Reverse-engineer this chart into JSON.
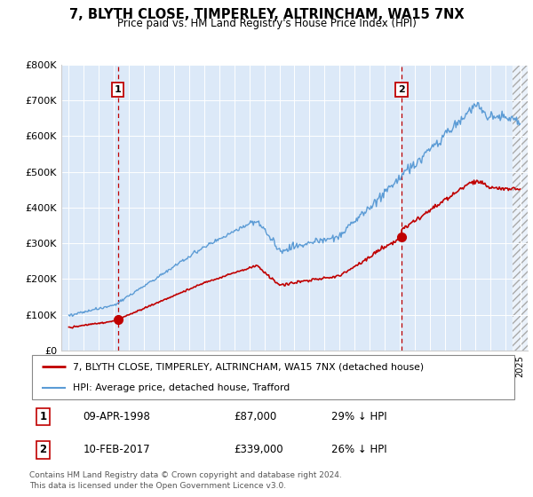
{
  "title": "7, BLYTH CLOSE, TIMPERLEY, ALTRINCHAM, WA15 7NX",
  "subtitle": "Price paid vs. HM Land Registry's House Price Index (HPI)",
  "ylim": [
    0,
    800000
  ],
  "yticks": [
    0,
    100000,
    200000,
    300000,
    400000,
    500000,
    600000,
    700000,
    800000
  ],
  "ytick_labels": [
    "£0",
    "£100K",
    "£200K",
    "£300K",
    "£400K",
    "£500K",
    "£600K",
    "£700K",
    "£800K"
  ],
  "plot_bg_color": "#dce9f8",
  "hpi_color": "#5b9bd5",
  "price_color": "#c00000",
  "vline_color": "#c00000",
  "t1": 1998.27,
  "p1": 87000,
  "t2": 2017.11,
  "p2": 339000,
  "legend_line1": "7, BLYTH CLOSE, TIMPERLEY, ALTRINCHAM, WA15 7NX (detached house)",
  "legend_line2": "HPI: Average price, detached house, Trafford",
  "footnote1": "Contains HM Land Registry data © Crown copyright and database right 2024.",
  "footnote2": "This data is licensed under the Open Government Licence v3.0.",
  "table_row1": [
    "1",
    "09-APR-1998",
    "£87,000",
    "29% ↓ HPI"
  ],
  "table_row2": [
    "2",
    "10-FEB-2017",
    "£339,000",
    "26% ↓ HPI"
  ],
  "xlim_start": 1994.5,
  "xlim_end": 2025.5,
  "hatch_start": 2024.5
}
